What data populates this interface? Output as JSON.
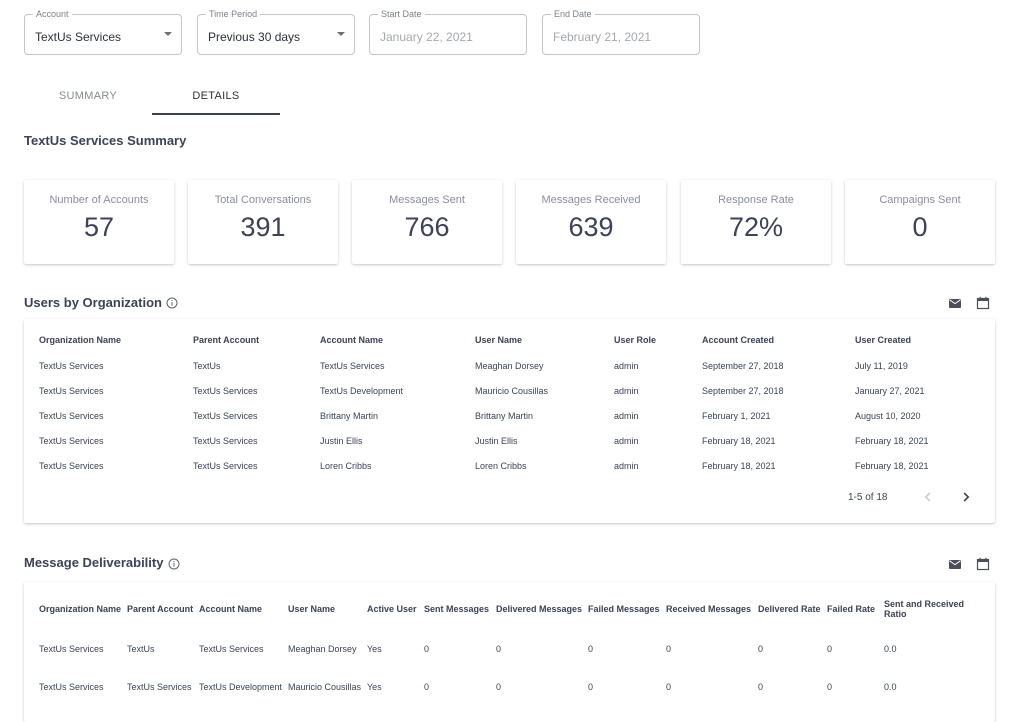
{
  "filters": {
    "account": {
      "label": "Account",
      "value": "TextUs Services"
    },
    "time_period": {
      "label": "Time Period",
      "value": "Previous 30 days"
    },
    "start_date": {
      "label": "Start Date",
      "value": "January 22, 2021"
    },
    "end_date": {
      "label": "End Date",
      "value": "February 21, 2021"
    }
  },
  "tabs": [
    {
      "label": "SUMMARY"
    },
    {
      "label": "DETAILS"
    }
  ],
  "summary_title": "TextUs Services Summary",
  "stats": [
    {
      "label": "Number of Accounts",
      "value": "57"
    },
    {
      "label": "Total Conversations",
      "value": "391"
    },
    {
      "label": "Messages Sent",
      "value": "766"
    },
    {
      "label": "Messages Received",
      "value": "639"
    },
    {
      "label": "Response Rate",
      "value": "72%"
    },
    {
      "label": "Campaigns Sent",
      "value": "0"
    }
  ],
  "users_section": {
    "title": "Users by Organization",
    "columns": [
      "Organization Name",
      "Parent Account",
      "Account Name",
      "User Name",
      "User Role",
      "Account Created",
      "User Created"
    ],
    "rows": [
      [
        "TextUs Services",
        "TextUs",
        "TextUs Services",
        "Meaghan Dorsey",
        "admin",
        "September 27, 2018",
        "July 11, 2019"
      ],
      [
        "TextUs Services",
        "TextUs Services",
        "TextUs Development",
        "Mauricio Cousillas",
        "admin",
        "September 27, 2018",
        "January 27, 2021"
      ],
      [
        "TextUs Services",
        "TextUs Services",
        "Brittany Martin",
        "Brittany Martin",
        "admin",
        "February 1, 2021",
        "August 10, 2020"
      ],
      [
        "TextUs Services",
        "TextUs Services",
        "Justin Ellis",
        "Justin Ellis",
        "admin",
        "February 18, 2021",
        "February 18, 2021"
      ],
      [
        "TextUs Services",
        "TextUs Services",
        "Loren Cribbs",
        "Loren Cribbs",
        "admin",
        "February 18, 2021",
        "February 18, 2021"
      ]
    ],
    "pagination": "1-5 of 18"
  },
  "deliverability_section": {
    "title": "Message Deliverability",
    "columns": [
      "Organization Name",
      "Parent Account",
      "Account Name",
      "User Name",
      "Active User",
      "Sent Messages",
      "Delivered Messages",
      "Failed Messages",
      "Received Messages",
      "Delivered Rate",
      "Failed Rate",
      "Sent and Received Ratio"
    ],
    "rows": [
      [
        "TextUs Services",
        "TextUs",
        "TextUs Services",
        "Meaghan Dorsey",
        "Yes",
        "0",
        "0",
        "0",
        "0",
        "0",
        "0",
        "0.0"
      ],
      [
        "TextUs Services",
        "TextUs Services",
        "TextUs Development",
        "Mauricio Cousillas",
        "Yes",
        "0",
        "0",
        "0",
        "0",
        "0",
        "0",
        "0.0"
      ]
    ]
  },
  "icons": {
    "info": "info-icon",
    "email": "email-icon",
    "calendar": "calendar-icon",
    "prev": "chevron-left-icon",
    "next": "chevron-right-icon"
  }
}
